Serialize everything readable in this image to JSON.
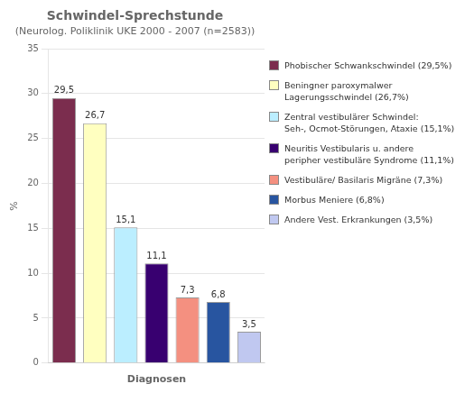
{
  "chart_data": {
    "type": "bar",
    "title": "Schwindel-Sprechstunde",
    "subtitle": "(Neurolog. Poliklinik UKE 2000 - 2007 (n=2583))",
    "xlabel": "Diagnosen",
    "ylabel": "%",
    "categories": [
      "Phobischer Schwankschwindel (29,5%)",
      "Beningner paroxymalwer\nLagerungsschwindel (26,7%)",
      "Zentral vestibulärer Schwindel:\nSeh-, Ocmot-Störungen, Ataxie (15,1%)",
      "Neuritis Vestibularis u. andere\nperipher vestibuläre Syndrome (11,1%)",
      "Vestibuläre/ Basilaris Migräne (7,3%)",
      "Morbus Meniere (6,8%)",
      "Andere Vest. Erkrankungen (3,5%)"
    ],
    "values": [
      29.5,
      26.7,
      15.1,
      11.1,
      7.3,
      6.8,
      3.5
    ],
    "value_labels": [
      "29,5",
      "26,7",
      "15,1",
      "11,1",
      "7,3",
      "6,8",
      "3,5"
    ],
    "colors": [
      "#7B2D4E",
      "#FFFFC0",
      "#BBEEFF",
      "#380070",
      "#F49080",
      "#2855A0",
      "#C0C8F0"
    ],
    "ylim": [
      0,
      35
    ],
    "yticks": [
      0,
      5,
      10,
      15,
      20,
      25,
      30,
      35
    ],
    "grid": true,
    "legend": "right",
    "data_labels": true,
    "tick_labels": "y"
  }
}
